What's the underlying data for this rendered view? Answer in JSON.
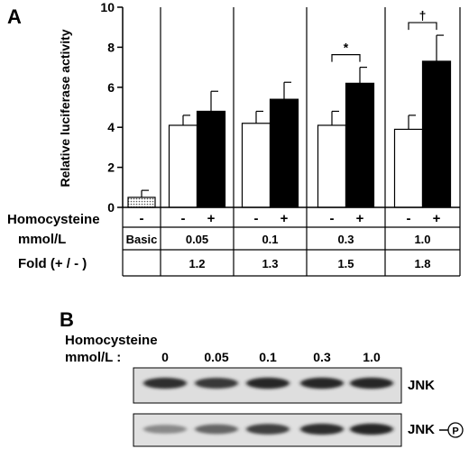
{
  "chart_data": {
    "type": "bar",
    "panel_label": "A",
    "ylabel": "Relative luciferase activity",
    "ylim": [
      0,
      10
    ],
    "yticks": [
      "0",
      "2",
      "4",
      "6",
      "8",
      "10"
    ],
    "groups": [
      {
        "conc": "Basic",
        "fold": "",
        "bars": [
          {
            "sign": "-",
            "value": 0.5,
            "error": 0.35,
            "style": "stippled"
          }
        ]
      },
      {
        "conc": "0.05",
        "fold": "1.2",
        "bars": [
          {
            "sign": "-",
            "value": 4.1,
            "error": 0.5,
            "style": "open"
          },
          {
            "sign": "+",
            "value": 4.8,
            "error": 1.0,
            "style": "filled"
          }
        ]
      },
      {
        "conc": "0.1",
        "fold": "1.3",
        "bars": [
          {
            "sign": "-",
            "value": 4.2,
            "error": 0.6,
            "style": "open"
          },
          {
            "sign": "+",
            "value": 5.4,
            "error": 0.85,
            "style": "filled"
          }
        ]
      },
      {
        "conc": "0.3",
        "fold": "1.5",
        "sig": "*",
        "bars": [
          {
            "sign": "-",
            "value": 4.1,
            "error": 0.7,
            "style": "open"
          },
          {
            "sign": "+",
            "value": 6.2,
            "error": 0.8,
            "style": "filled"
          }
        ]
      },
      {
        "conc": "1.0",
        "fold": "1.8",
        "sig": "†",
        "bars": [
          {
            "sign": "-",
            "value": 3.9,
            "error": 0.7,
            "style": "open"
          },
          {
            "sign": "+",
            "value": 7.3,
            "error": 1.3,
            "style": "filled"
          }
        ]
      }
    ],
    "table": {
      "row1_label": "Homocysteine",
      "row2_label": "mmol/L",
      "row3_label": "Fold (+ / - )"
    }
  },
  "blot": {
    "panel_label": "B",
    "label_line1": "Homocysteine",
    "label_line2": "mmol/L :",
    "concentrations": [
      "0",
      "0.05",
      "0.1",
      "0.3",
      "1.0"
    ],
    "rows": [
      {
        "name": "JNK",
        "intensities": [
          0.85,
          0.8,
          0.9,
          0.9,
          0.9
        ]
      },
      {
        "name": "JNK",
        "phospho": "P",
        "intensities": [
          0.35,
          0.55,
          0.75,
          0.85,
          0.9
        ]
      }
    ]
  }
}
